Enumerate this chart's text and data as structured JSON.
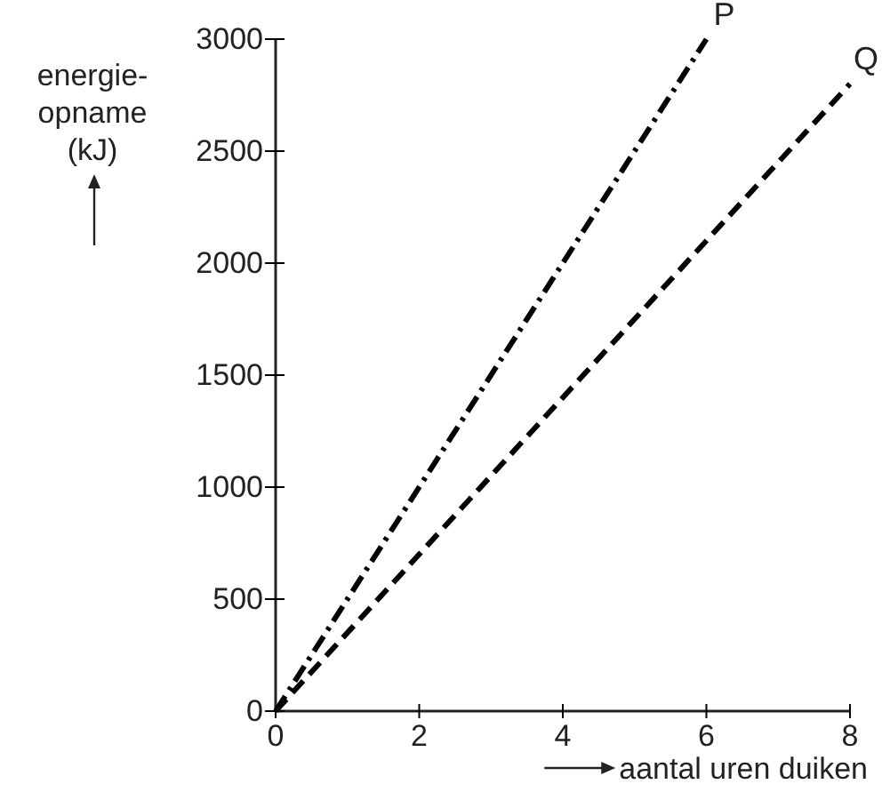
{
  "chart_data": {
    "type": "line",
    "xlabel": "aantal uren duiken",
    "ylabel": "energie-\nopname\n(kJ)",
    "xlim": [
      0,
      8
    ],
    "xticks": [
      0,
      2,
      4,
      6,
      8
    ],
    "ylim": [
      0,
      3000
    ],
    "yticks": [
      0,
      500,
      1000,
      1500,
      2000,
      2500,
      3000
    ],
    "grid": false,
    "legend": false,
    "marker": "none",
    "series": [
      {
        "name": "P",
        "color": "#000000",
        "x": [
          0,
          6
        ],
        "values": [
          0,
          3000
        ],
        "line_style": "dashdot"
      },
      {
        "name": "Q",
        "color": "#000000",
        "x": [
          0,
          8
        ],
        "values": [
          0,
          2800
        ],
        "line_style": "dashed"
      }
    ]
  }
}
